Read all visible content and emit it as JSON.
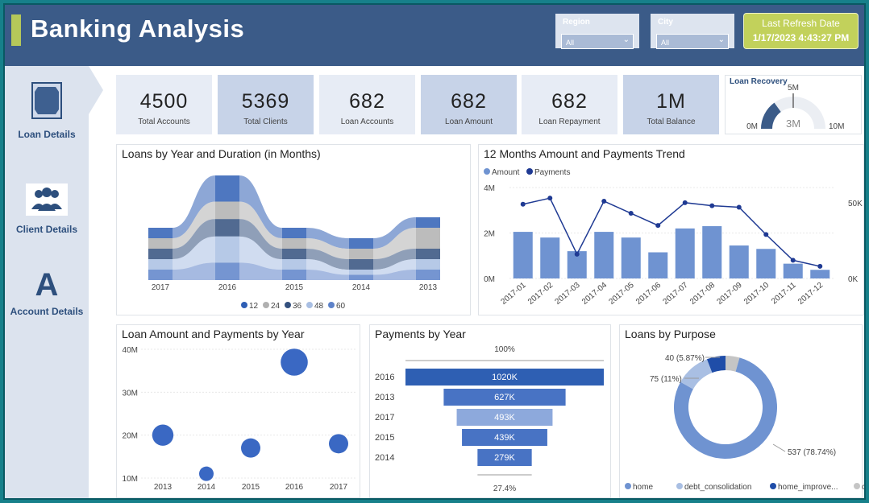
{
  "header": {
    "title": "Banking Analysis",
    "region": {
      "label": "Region",
      "value": "All"
    },
    "city": {
      "label": "City",
      "value": "All"
    },
    "refresh": {
      "label": "Last Refresh Date",
      "value": "1/17/2023 4:43:27 PM"
    }
  },
  "nav": [
    {
      "label": "Loan Details",
      "icon": "document-icon"
    },
    {
      "label": "Client Details",
      "icon": "people-icon"
    },
    {
      "label": "Account Details",
      "icon": "letter-a-icon"
    }
  ],
  "kpis": [
    {
      "value": "4500",
      "label": "Total Accounts"
    },
    {
      "value": "5369",
      "label": "Total Clients"
    },
    {
      "value": "682",
      "label": "Loan Accounts"
    },
    {
      "value": "682",
      "label": "Loan Amount"
    },
    {
      "value": "682",
      "label": "Loan Repayment"
    },
    {
      "value": "1M",
      "label": "Total Balance"
    }
  ],
  "gauge": {
    "title": "Loan Recovery",
    "min_label": "0M",
    "max_label": "10M",
    "target_label": "5M",
    "value_label": "3M",
    "value": 3,
    "min": 0,
    "max": 10,
    "target": 5
  },
  "ribbon": {
    "title": "Loans by Year and Duration (in Months)",
    "years": [
      "2017",
      "2016",
      "2015",
      "2014",
      "2013"
    ],
    "legend": [
      "12",
      "24",
      "36",
      "48",
      "60"
    ],
    "colors": [
      "#2f5fb5",
      "#b0b0b0",
      "#33507e",
      "#a9bfe3",
      "#5d82c9"
    ]
  },
  "trend": {
    "title": "12 Months Amount and Payments Trend",
    "legend": [
      "Amount",
      "Payments"
    ],
    "left_ticks": [
      "4M",
      "2M",
      "0M"
    ],
    "right_ticks": [
      "50K",
      "0K"
    ]
  },
  "bubble": {
    "title": "Loan Amount and Payments by Year",
    "y_ticks": [
      "40M",
      "30M",
      "20M",
      "10M"
    ],
    "x_ticks": [
      "2013",
      "2014",
      "2015",
      "2016",
      "2017"
    ]
  },
  "funnel": {
    "title": "Payments by Year",
    "top_label": "100%",
    "bottom_label": "27.4%"
  },
  "donut": {
    "title": "Loans by Purpose",
    "callouts": [
      "40 (5.87%)",
      "75 (11%)",
      "537 (78.74%)"
    ],
    "legend": [
      "home",
      "debt_consolidation",
      "home_improve...",
      "car"
    ]
  },
  "chart_data": [
    {
      "type": "area",
      "title": "Loans by Year and Duration (in Months)",
      "categories": [
        "2017",
        "2016",
        "2015",
        "2014",
        "2013"
      ],
      "series": [
        {
          "name": "12",
          "values": [
            1,
            3,
            1,
            1,
            1
          ]
        },
        {
          "name": "24",
          "values": [
            1,
            2,
            1,
            1,
            2
          ]
        },
        {
          "name": "36",
          "values": [
            1,
            2,
            1,
            1,
            1
          ]
        },
        {
          "name": "48",
          "values": [
            1,
            3,
            1,
            0.5,
            1
          ]
        },
        {
          "name": "60",
          "values": [
            1,
            2,
            1,
            0.5,
            1
          ]
        }
      ]
    },
    {
      "type": "bar",
      "title": "12 Months Amount and Payments Trend",
      "categories": [
        "2017-01",
        "2017-02",
        "2017-03",
        "2017-04",
        "2017-05",
        "2017-06",
        "2017-07",
        "2017-08",
        "2017-09",
        "2017-10",
        "2017-11",
        "2017-12"
      ],
      "series": [
        {
          "name": "Amount",
          "values": [
            2.05,
            1.8,
            1.2,
            2.05,
            1.8,
            1.15,
            2.2,
            2.3,
            1.45,
            1.3,
            0.65,
            0.38
          ]
        },
        {
          "name": "Payments",
          "values": [
            49000,
            53000,
            16000,
            51000,
            43000,
            35000,
            50000,
            48000,
            47000,
            29000,
            12000,
            8000
          ]
        }
      ],
      "ylim": [
        0,
        4
      ],
      "y2lim": [
        0,
        60000
      ]
    },
    {
      "type": "scatter",
      "title": "Loan Amount and Payments by Year",
      "x": [
        "2013",
        "2014",
        "2015",
        "2016",
        "2017"
      ],
      "y": [
        20,
        11,
        17,
        37,
        18
      ],
      "size": [
        1.1,
        0.75,
        1.0,
        1.4,
        1.0
      ],
      "ylim": [
        10,
        40
      ]
    },
    {
      "type": "bar",
      "title": "Payments by Year",
      "categories": [
        "2016",
        "2013",
        "2017",
        "2015",
        "2014"
      ],
      "values": [
        1020,
        627,
        493,
        439,
        279
      ],
      "value_labels": [
        "1020K",
        "627K",
        "493K",
        "439K",
        "279K"
      ]
    },
    {
      "type": "pie",
      "title": "Loans by Purpose",
      "categories": [
        "home",
        "debt_consolidation",
        "home_improve...",
        "car"
      ],
      "values": [
        537,
        75,
        40,
        30
      ]
    }
  ]
}
